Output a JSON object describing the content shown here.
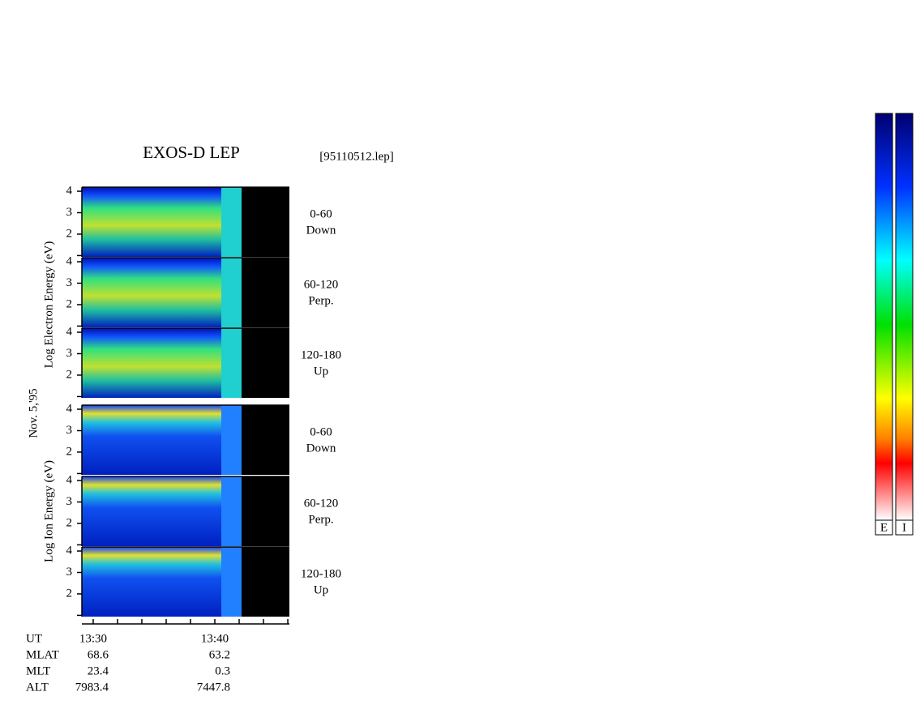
{
  "title": "EXOS-D LEP",
  "file_name": "[95110512.lep]",
  "date_label": "Nov. 5,'95",
  "electron_axis_label": "Log  Electron  Energy (eV)",
  "ion_axis_label": "Log  Ion  Energy (eV)",
  "chart_data": [
    {
      "type": "spectrogram",
      "species": "electron",
      "pitch_angle": "0-60",
      "direction": "Down",
      "ylim": [
        0.94,
        4.19
      ],
      "yticks": [
        2,
        3,
        4
      ],
      "minor_yticks": [
        1
      ]
    },
    {
      "type": "spectrogram",
      "species": "electron",
      "pitch_angle": "60-120",
      "direction": "Perp.",
      "ylim": [
        0.94,
        4.19
      ],
      "yticks": [
        2,
        3,
        4
      ],
      "minor_yticks": [
        1
      ]
    },
    {
      "type": "spectrogram",
      "species": "electron",
      "pitch_angle": "120-180",
      "direction": "Up",
      "ylim": [
        0.94,
        4.19
      ],
      "yticks": [
        2,
        3,
        4
      ],
      "minor_yticks": [
        1
      ]
    },
    {
      "type": "spectrogram",
      "species": "ion",
      "pitch_angle": "0-60",
      "direction": "Down",
      "ylim": [
        0.94,
        4.19
      ],
      "yticks": [
        2,
        3,
        4
      ],
      "minor_yticks": [
        1
      ]
    },
    {
      "type": "spectrogram",
      "species": "ion",
      "pitch_angle": "60-120",
      "direction": "Perp.",
      "ylim": [
        0.94,
        4.19
      ],
      "yticks": [
        2,
        3,
        4
      ],
      "minor_yticks": [
        1
      ]
    },
    {
      "type": "spectrogram",
      "species": "ion",
      "pitch_angle": "120-180",
      "direction": "Up",
      "ylim": [
        0.94,
        4.19
      ],
      "yticks": [
        2,
        3,
        4
      ],
      "minor_yticks": [
        1
      ]
    }
  ],
  "time_axis": {
    "xlim": [
      809.07,
      826.13
    ],
    "xticks": [
      {
        "value": 810,
        "label": "13:30"
      },
      {
        "value": 820,
        "label": "13:40"
      }
    ],
    "minor_xticks": [
      812,
      814,
      816,
      818,
      822,
      824,
      826
    ]
  },
  "orbit": {
    "row_labels": [
      "UT",
      "MLAT",
      "MLT",
      "ALT"
    ],
    "rows": [
      [
        "68.6",
        "63.2"
      ],
      [
        "23.4",
        "0.3"
      ],
      [
        "7983.4",
        "7447.8"
      ]
    ]
  },
  "colorbars": [
    {
      "label": "E"
    },
    {
      "label": "I"
    }
  ]
}
